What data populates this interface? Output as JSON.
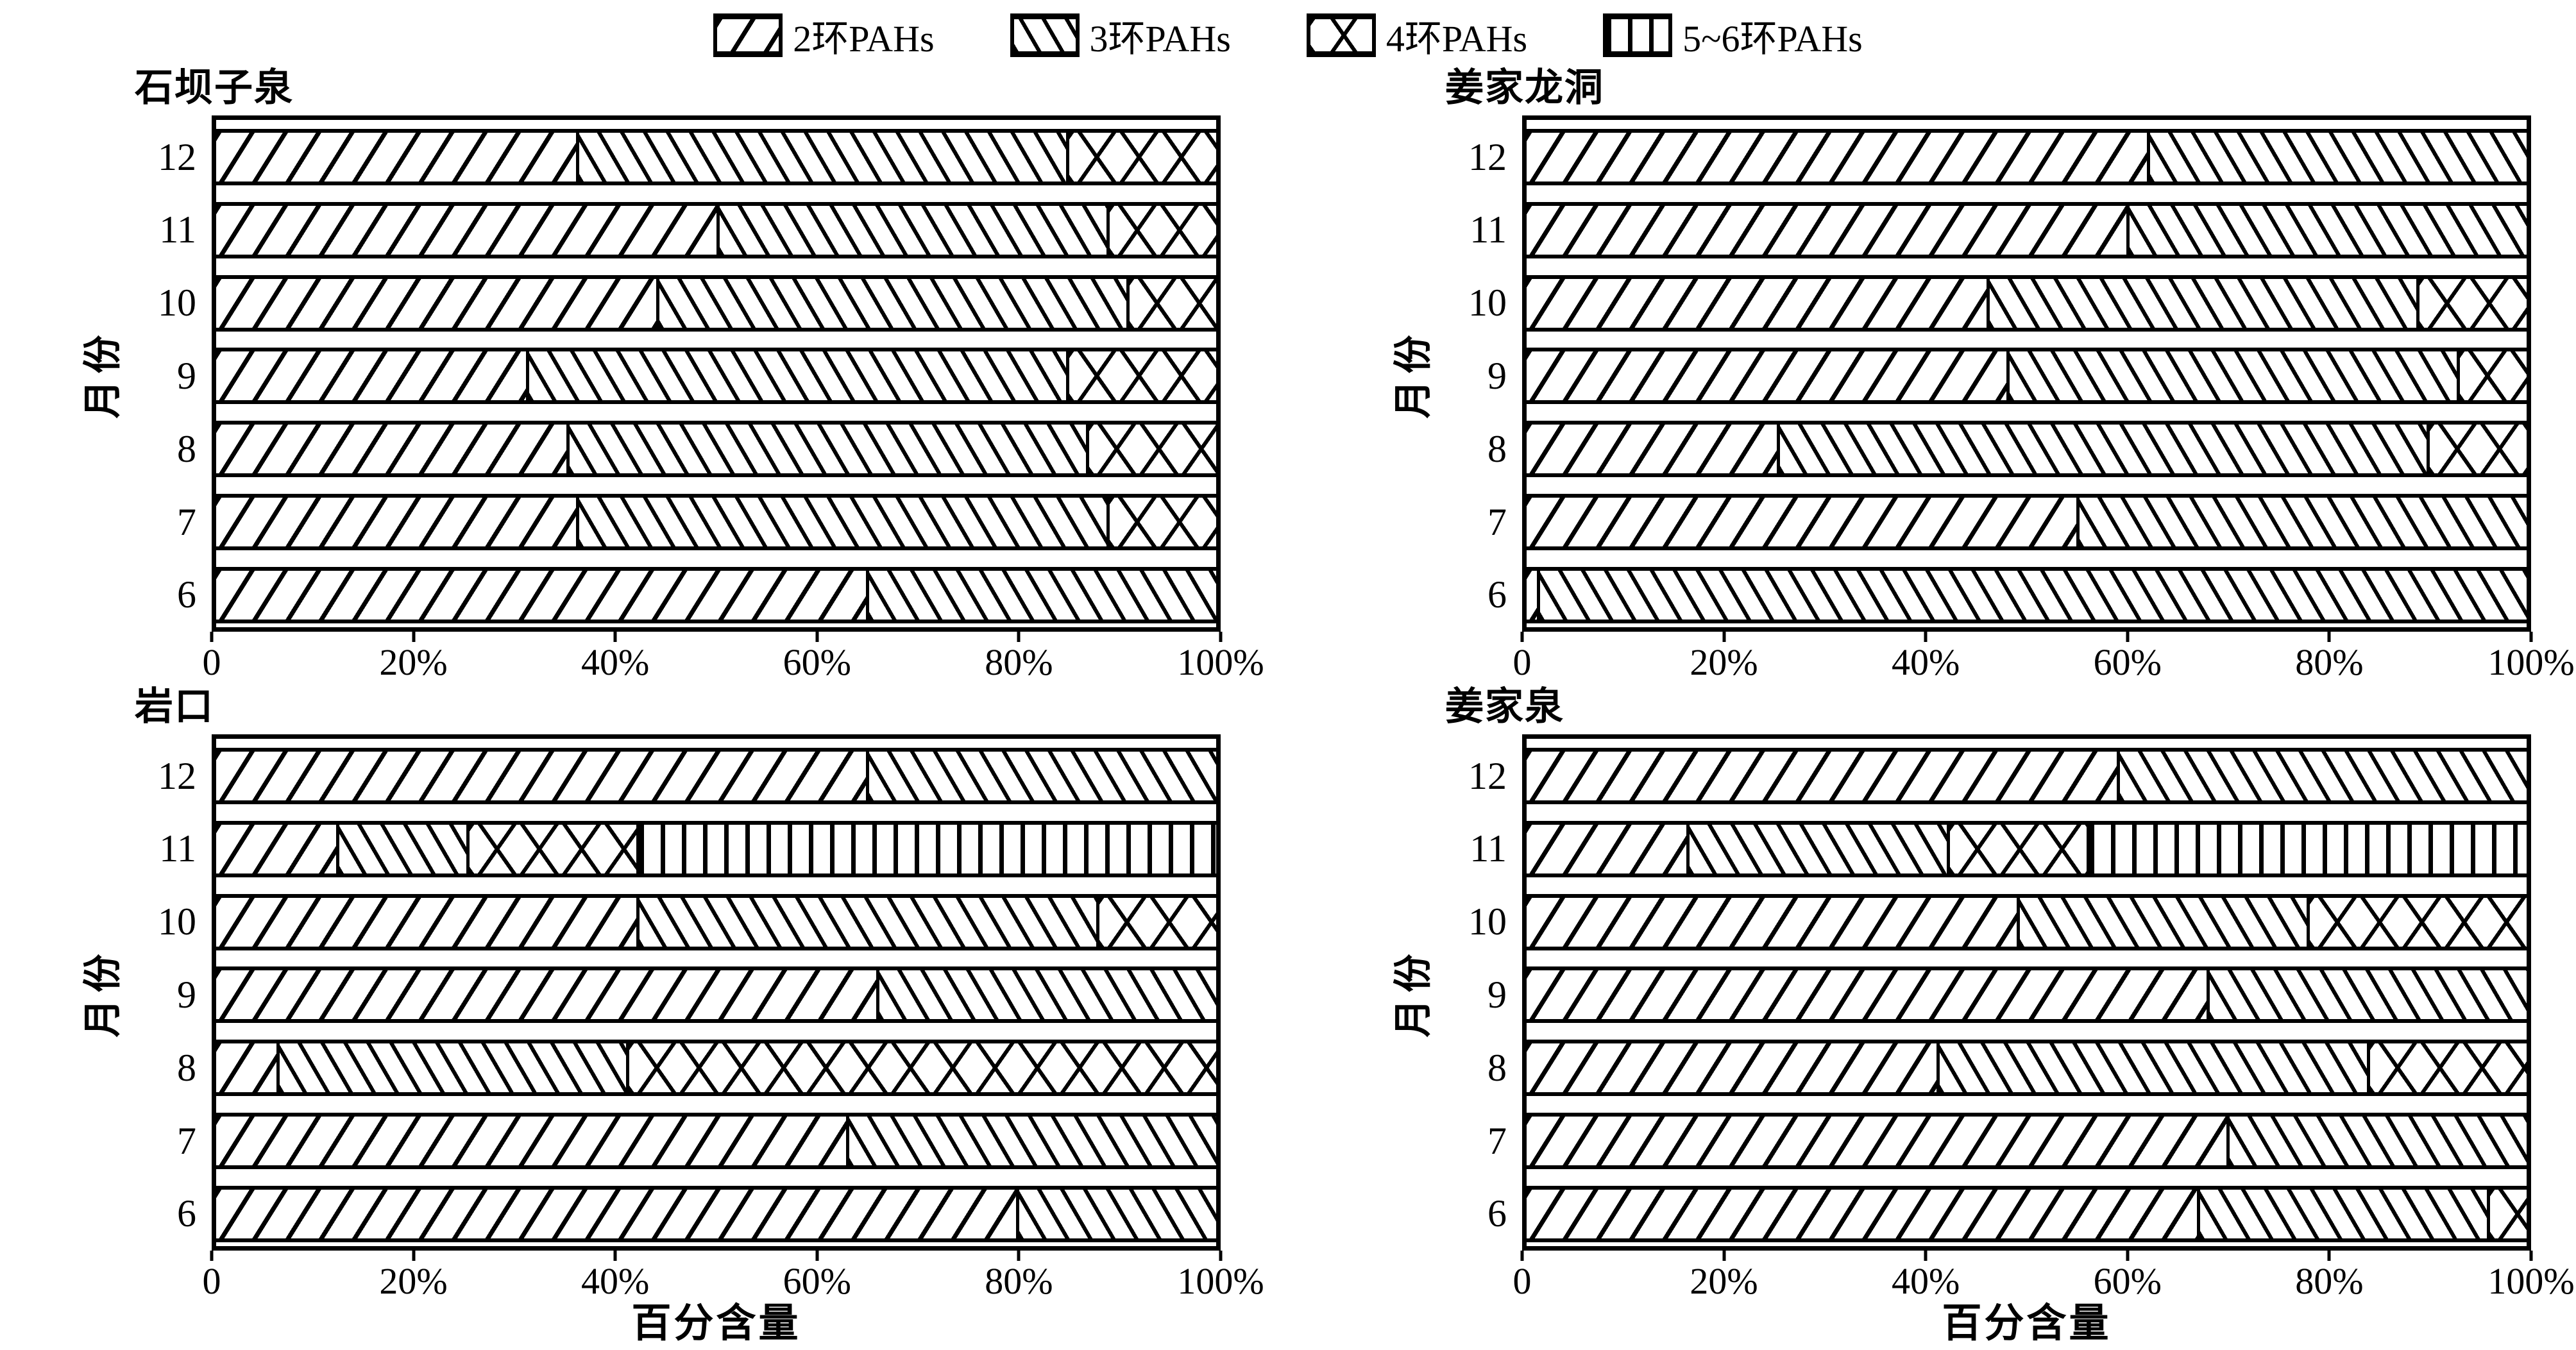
{
  "figure": {
    "background": "#ffffff",
    "foreground": "#000000",
    "legend_position": "top"
  },
  "chart_data": {
    "type": "bar",
    "orientation": "horizontal",
    "stacked": true,
    "unit": "percent",
    "grid": false,
    "xlabel": "百分含量",
    "ylabel": "月份",
    "xlim": [
      0,
      100
    ],
    "x_ticks": [
      "0",
      "20%",
      "40%",
      "60%",
      "80%",
      "100%"
    ],
    "categories": [
      12,
      11,
      10,
      9,
      8,
      7,
      6
    ],
    "series": [
      {
        "key": "2ring",
        "name": "2环PAHs",
        "pattern": "forward-diagonal-hatch"
      },
      {
        "key": "3ring",
        "name": "3环PAHs",
        "pattern": "backward-diagonal-hatch"
      },
      {
        "key": "4ring",
        "name": "4环PAHs",
        "pattern": "crosshatch"
      },
      {
        "key": "56ring",
        "name": "5~6环PAHs",
        "pattern": "vertical-hatch"
      }
    ],
    "panels": [
      {
        "title": "石坝子泉",
        "values": [
          [
            36,
            49,
            15,
            0
          ],
          [
            50,
            39,
            11,
            0
          ],
          [
            44,
            47,
            9,
            0
          ],
          [
            31,
            54,
            15,
            0
          ],
          [
            35,
            52,
            13,
            0
          ],
          [
            36,
            53,
            11,
            0
          ],
          [
            65,
            35,
            0,
            0
          ]
        ]
      },
      {
        "title": "姜家龙洞",
        "values": [
          [
            62,
            38,
            0,
            0
          ],
          [
            60,
            40,
            0,
            0
          ],
          [
            46,
            43,
            11,
            0
          ],
          [
            48,
            45,
            7,
            0
          ],
          [
            25,
            65,
            10,
            0
          ],
          [
            55,
            45,
            0,
            0
          ],
          [
            1,
            99,
            0,
            0
          ]
        ]
      },
      {
        "title": "岩口",
        "values": [
          [
            65,
            35,
            0,
            0
          ],
          [
            12,
            13,
            17,
            58
          ],
          [
            42,
            46,
            12,
            0
          ],
          [
            66,
            34,
            0,
            0
          ],
          [
            6,
            35,
            59,
            0
          ],
          [
            63,
            37,
            0,
            0
          ],
          [
            80,
            20,
            0,
            0
          ]
        ]
      },
      {
        "title": "姜家泉",
        "values": [
          [
            59,
            41,
            0,
            0
          ],
          [
            16,
            26,
            14,
            44
          ],
          [
            49,
            29,
            22,
            0
          ],
          [
            68,
            32,
            0,
            0
          ],
          [
            41,
            43,
            16,
            0
          ],
          [
            70,
            30,
            0,
            0
          ],
          [
            67,
            29,
            4,
            0
          ]
        ]
      }
    ]
  }
}
